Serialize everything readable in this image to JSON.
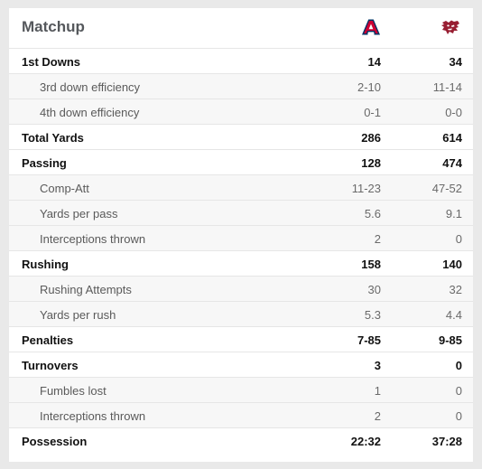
{
  "header": {
    "title": "Matchup",
    "team1_logo": "arizona-logo",
    "team2_logo": "washington-state-logo",
    "team1_color": "#CC0033",
    "team1_navy": "#003366",
    "team2_color": "#981E32"
  },
  "rows": [
    {
      "label": "1st Downs",
      "team1": "14",
      "team2": "34",
      "sub": false
    },
    {
      "label": "3rd down efficiency",
      "team1": "2-10",
      "team2": "11-14",
      "sub": true
    },
    {
      "label": "4th down efficiency",
      "team1": "0-1",
      "team2": "0-0",
      "sub": true
    },
    {
      "label": "Total Yards",
      "team1": "286",
      "team2": "614",
      "sub": false
    },
    {
      "label": "Passing",
      "team1": "128",
      "team2": "474",
      "sub": false
    },
    {
      "label": "Comp-Att",
      "team1": "11-23",
      "team2": "47-52",
      "sub": true
    },
    {
      "label": "Yards per pass",
      "team1": "5.6",
      "team2": "9.1",
      "sub": true
    },
    {
      "label": "Interceptions thrown",
      "team1": "2",
      "team2": "0",
      "sub": true
    },
    {
      "label": "Rushing",
      "team1": "158",
      "team2": "140",
      "sub": false
    },
    {
      "label": "Rushing Attempts",
      "team1": "30",
      "team2": "32",
      "sub": true
    },
    {
      "label": "Yards per rush",
      "team1": "5.3",
      "team2": "4.4",
      "sub": true
    },
    {
      "label": "Penalties",
      "team1": "7-85",
      "team2": "9-85",
      "sub": false
    },
    {
      "label": "Turnovers",
      "team1": "3",
      "team2": "0",
      "sub": false
    },
    {
      "label": "Fumbles lost",
      "team1": "1",
      "team2": "0",
      "sub": true
    },
    {
      "label": "Interceptions thrown",
      "team1": "2",
      "team2": "0",
      "sub": true
    },
    {
      "label": "Possession",
      "team1": "22:32",
      "team2": "37:28",
      "sub": false
    }
  ]
}
